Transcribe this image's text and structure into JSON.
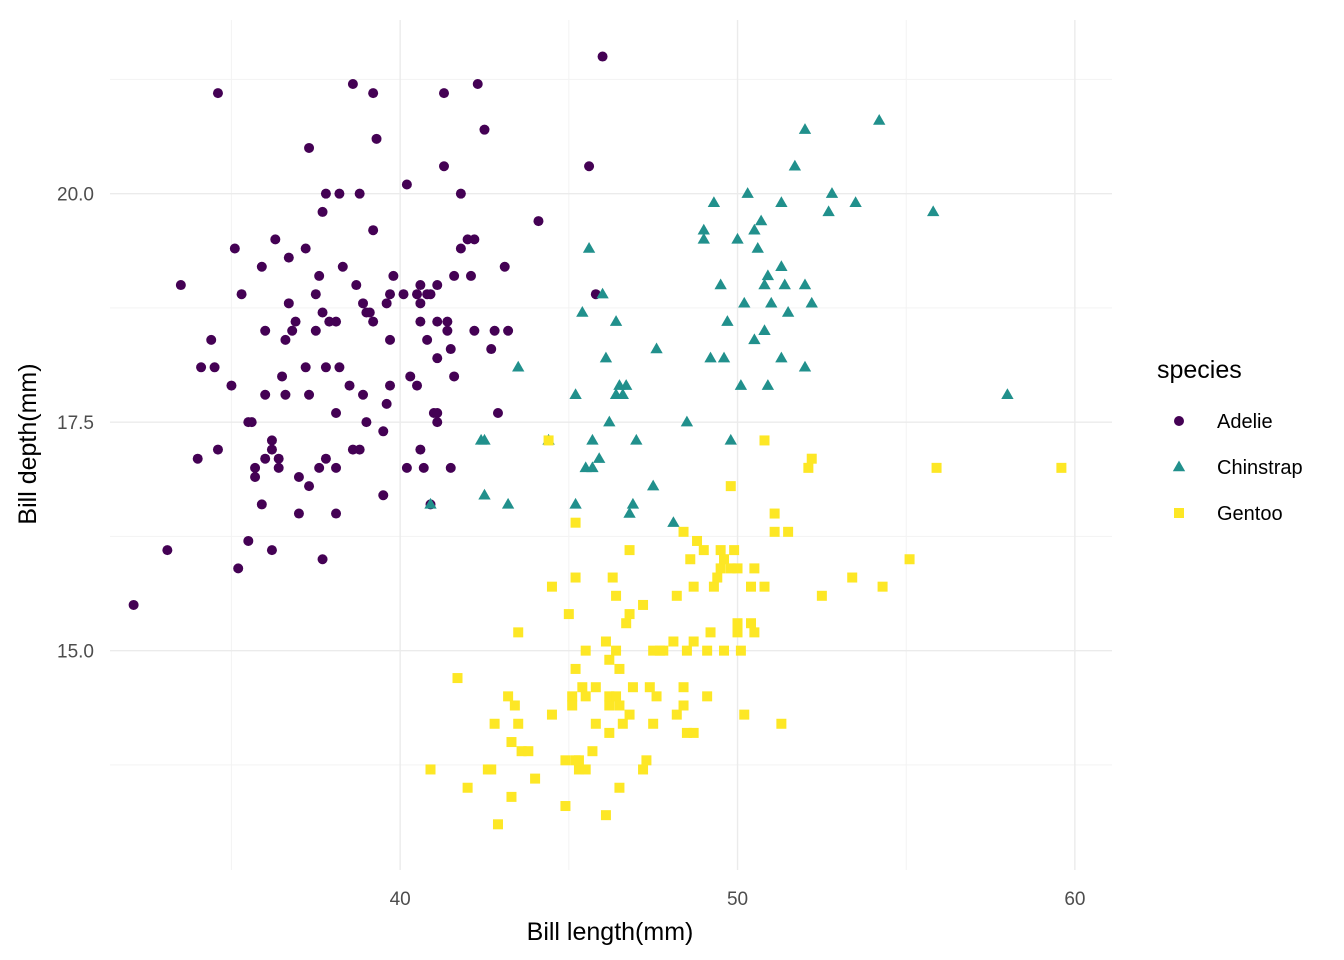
{
  "chart_data": {
    "type": "scatter",
    "xlabel": "Bill length(mm)",
    "ylabel": "Bill depth(mm)",
    "xlim": [
      31.4,
      61.1
    ],
    "ylim": [
      12.6,
      21.9
    ],
    "x_ticks": [
      40,
      50,
      60
    ],
    "x_tick_labels": [
      "40",
      "50",
      "60"
    ],
    "y_ticks": [
      15.0,
      17.5,
      20.0
    ],
    "y_tick_labels": [
      "15.0",
      "17.5",
      "20.0"
    ],
    "grid": true,
    "legend": {
      "title": "species",
      "position": "right"
    },
    "series": [
      {
        "name": "Adelie",
        "color": "#440154",
        "shape": "circle",
        "points": [
          [
            32.1,
            15.5
          ],
          [
            33.1,
            16.1
          ],
          [
            33.5,
            19.0
          ],
          [
            34.0,
            17.1
          ],
          [
            34.1,
            18.1
          ],
          [
            34.4,
            18.4
          ],
          [
            34.5,
            18.1
          ],
          [
            34.6,
            21.1
          ],
          [
            34.6,
            17.2
          ],
          [
            35.0,
            17.9
          ],
          [
            35.1,
            19.4
          ],
          [
            35.2,
            15.9
          ],
          [
            35.3,
            18.9
          ],
          [
            35.5,
            16.2
          ],
          [
            35.5,
            17.5
          ],
          [
            35.6,
            17.5
          ],
          [
            35.7,
            17.0
          ],
          [
            35.7,
            16.9
          ],
          [
            35.9,
            16.6
          ],
          [
            35.9,
            19.2
          ],
          [
            36.0,
            18.5
          ],
          [
            36.0,
            17.8
          ],
          [
            36.0,
            17.1
          ],
          [
            36.2,
            16.1
          ],
          [
            36.2,
            17.3
          ],
          [
            36.2,
            17.2
          ],
          [
            36.3,
            19.5
          ],
          [
            36.4,
            17.1
          ],
          [
            36.4,
            17.0
          ],
          [
            36.5,
            18.0
          ],
          [
            36.6,
            17.8
          ],
          [
            36.6,
            18.4
          ],
          [
            36.7,
            18.8
          ],
          [
            36.7,
            19.3
          ],
          [
            36.8,
            18.5
          ],
          [
            36.9,
            18.6
          ],
          [
            37.0,
            16.9
          ],
          [
            37.0,
            16.5
          ],
          [
            37.2,
            18.1
          ],
          [
            37.2,
            19.4
          ],
          [
            37.3,
            16.8
          ],
          [
            37.3,
            17.8
          ],
          [
            37.3,
            20.5
          ],
          [
            37.5,
            18.9
          ],
          [
            37.5,
            18.5
          ],
          [
            37.6,
            17.0
          ],
          [
            37.6,
            19.1
          ],
          [
            37.7,
            18.7
          ],
          [
            37.7,
            16.0
          ],
          [
            37.7,
            19.8
          ],
          [
            37.8,
            17.1
          ],
          [
            37.8,
            18.1
          ],
          [
            37.8,
            20.0
          ],
          [
            37.9,
            18.6
          ],
          [
            38.1,
            17.0
          ],
          [
            38.1,
            18.6
          ],
          [
            38.1,
            16.5
          ],
          [
            38.1,
            17.6
          ],
          [
            38.2,
            18.1
          ],
          [
            38.2,
            20.0
          ],
          [
            38.3,
            19.2
          ],
          [
            38.5,
            17.9
          ],
          [
            38.6,
            21.2
          ],
          [
            38.6,
            17.2
          ],
          [
            38.7,
            19.0
          ],
          [
            38.8,
            17.2
          ],
          [
            38.8,
            20.0
          ],
          [
            38.9,
            18.8
          ],
          [
            38.9,
            17.8
          ],
          [
            39.0,
            18.7
          ],
          [
            39.0,
            17.5
          ],
          [
            39.1,
            18.7
          ],
          [
            39.2,
            19.6
          ],
          [
            39.2,
            18.6
          ],
          [
            39.2,
            21.1
          ],
          [
            39.3,
            20.6
          ],
          [
            39.5,
            17.4
          ],
          [
            39.5,
            16.7
          ],
          [
            39.6,
            17.7
          ],
          [
            39.6,
            18.8
          ],
          [
            39.7,
            18.4
          ],
          [
            39.7,
            17.9
          ],
          [
            39.7,
            18.9
          ],
          [
            39.8,
            19.1
          ],
          [
            40.1,
            18.9
          ],
          [
            40.2,
            17.0
          ],
          [
            40.2,
            20.1
          ],
          [
            40.3,
            18.0
          ],
          [
            40.5,
            18.9
          ],
          [
            40.5,
            17.9
          ],
          [
            40.6,
            18.6
          ],
          [
            40.6,
            19.0
          ],
          [
            40.6,
            18.8
          ],
          [
            40.6,
            17.2
          ],
          [
            40.7,
            17.0
          ],
          [
            40.8,
            18.4
          ],
          [
            40.8,
            18.9
          ],
          [
            40.9,
            16.6
          ],
          [
            40.9,
            18.9
          ],
          [
            41.0,
            17.6
          ],
          [
            41.1,
            18.2
          ],
          [
            41.1,
            17.6
          ],
          [
            41.1,
            19.0
          ],
          [
            41.1,
            18.6
          ],
          [
            41.1,
            17.5
          ],
          [
            41.3,
            20.3
          ],
          [
            41.3,
            21.1
          ],
          [
            41.4,
            18.5
          ],
          [
            41.4,
            18.6
          ],
          [
            41.5,
            17.0
          ],
          [
            41.5,
            18.3
          ],
          [
            41.6,
            18.0
          ],
          [
            41.6,
            19.1
          ],
          [
            41.8,
            19.4
          ],
          [
            41.8,
            20.0
          ],
          [
            42.0,
            19.5
          ],
          [
            42.1,
            19.1
          ],
          [
            42.2,
            18.5
          ],
          [
            42.2,
            19.5
          ],
          [
            42.3,
            21.2
          ],
          [
            42.5,
            20.7
          ],
          [
            42.7,
            18.3
          ],
          [
            42.8,
            18.5
          ],
          [
            42.9,
            17.6
          ],
          [
            43.1,
            19.2
          ],
          [
            43.2,
            18.5
          ],
          [
            44.1,
            19.7
          ],
          [
            45.6,
            20.3
          ],
          [
            45.8,
            18.9
          ],
          [
            46.0,
            21.5
          ]
        ]
      },
      {
        "name": "Chinstrap",
        "color": "#21908c",
        "shape": "triangle",
        "points": [
          [
            40.9,
            16.6
          ],
          [
            42.4,
            17.3
          ],
          [
            42.5,
            16.7
          ],
          [
            42.5,
            17.3
          ],
          [
            43.2,
            16.6
          ],
          [
            43.5,
            18.1
          ],
          [
            44.4,
            17.3
          ],
          [
            45.2,
            16.6
          ],
          [
            45.2,
            17.8
          ],
          [
            45.4,
            18.7
          ],
          [
            45.5,
            17.0
          ],
          [
            45.6,
            19.4
          ],
          [
            45.7,
            17.0
          ],
          [
            45.7,
            17.3
          ],
          [
            45.9,
            17.1
          ],
          [
            46.0,
            18.9
          ],
          [
            46.1,
            18.2
          ],
          [
            46.2,
            17.5
          ],
          [
            46.4,
            17.8
          ],
          [
            46.4,
            18.6
          ],
          [
            46.5,
            17.9
          ],
          [
            46.6,
            17.8
          ],
          [
            46.7,
            17.9
          ],
          [
            46.8,
            16.5
          ],
          [
            46.9,
            16.6
          ],
          [
            47.0,
            17.3
          ],
          [
            47.5,
            16.8
          ],
          [
            47.6,
            18.3
          ],
          [
            48.1,
            16.4
          ],
          [
            48.5,
            17.5
          ],
          [
            49.0,
            19.5
          ],
          [
            49.0,
            19.6
          ],
          [
            49.2,
            18.2
          ],
          [
            49.3,
            19.9
          ],
          [
            49.5,
            19.0
          ],
          [
            49.6,
            18.2
          ],
          [
            49.7,
            18.6
          ],
          [
            49.8,
            17.3
          ],
          [
            50.0,
            19.5
          ],
          [
            50.1,
            17.9
          ],
          [
            50.2,
            18.8
          ],
          [
            50.3,
            20.0
          ],
          [
            50.5,
            18.4
          ],
          [
            50.5,
            19.6
          ],
          [
            50.6,
            19.4
          ],
          [
            50.7,
            19.7
          ],
          [
            50.8,
            18.5
          ],
          [
            50.8,
            19.0
          ],
          [
            50.9,
            17.9
          ],
          [
            50.9,
            19.1
          ],
          [
            51.0,
            18.8
          ],
          [
            51.3,
            18.2
          ],
          [
            51.3,
            19.2
          ],
          [
            51.3,
            19.9
          ],
          [
            51.4,
            19.0
          ],
          [
            51.5,
            18.7
          ],
          [
            51.7,
            20.3
          ],
          [
            52.0,
            18.1
          ],
          [
            52.0,
            19.0
          ],
          [
            52.0,
            20.7
          ],
          [
            52.2,
            18.8
          ],
          [
            52.7,
            19.8
          ],
          [
            52.8,
            20.0
          ],
          [
            53.5,
            19.9
          ],
          [
            54.2,
            20.8
          ],
          [
            55.8,
            19.8
          ],
          [
            58.0,
            17.8
          ]
        ]
      },
      {
        "name": "Gentoo",
        "color": "#fde725",
        "shape": "square",
        "points": [
          [
            40.9,
            13.7
          ],
          [
            41.7,
            14.7
          ],
          [
            42.0,
            13.5
          ],
          [
            42.6,
            13.7
          ],
          [
            42.7,
            13.7
          ],
          [
            42.8,
            14.2
          ],
          [
            42.9,
            13.1
          ],
          [
            43.2,
            14.5
          ],
          [
            43.3,
            13.4
          ],
          [
            43.3,
            14.0
          ],
          [
            43.4,
            14.4
          ],
          [
            43.5,
            14.2
          ],
          [
            43.5,
            15.2
          ],
          [
            43.6,
            13.9
          ],
          [
            43.8,
            13.9
          ],
          [
            44.0,
            13.6
          ],
          [
            44.4,
            17.3
          ],
          [
            44.5,
            14.3
          ],
          [
            44.5,
            15.7
          ],
          [
            44.9,
            13.3
          ],
          [
            44.9,
            13.8
          ],
          [
            45.0,
            15.4
          ],
          [
            45.1,
            14.5
          ],
          [
            45.1,
            14.4
          ],
          [
            45.2,
            13.8
          ],
          [
            45.2,
            14.8
          ],
          [
            45.2,
            15.8
          ],
          [
            45.2,
            16.4
          ],
          [
            45.3,
            13.7
          ],
          [
            45.3,
            13.8
          ],
          [
            45.4,
            14.6
          ],
          [
            45.5,
            13.7
          ],
          [
            45.5,
            14.5
          ],
          [
            45.5,
            15.0
          ],
          [
            45.7,
            13.9
          ],
          [
            45.8,
            14.2
          ],
          [
            45.8,
            14.6
          ],
          [
            46.1,
            13.2
          ],
          [
            46.1,
            15.1
          ],
          [
            46.2,
            14.1
          ],
          [
            46.2,
            14.4
          ],
          [
            46.2,
            14.5
          ],
          [
            46.2,
            14.9
          ],
          [
            46.3,
            15.8
          ],
          [
            46.4,
            14.5
          ],
          [
            46.4,
            15.0
          ],
          [
            46.4,
            15.6
          ],
          [
            46.5,
            13.5
          ],
          [
            46.5,
            14.4
          ],
          [
            46.5,
            14.8
          ],
          [
            46.6,
            14.2
          ],
          [
            46.7,
            15.3
          ],
          [
            46.8,
            14.3
          ],
          [
            46.8,
            15.4
          ],
          [
            46.8,
            16.1
          ],
          [
            46.9,
            14.6
          ],
          [
            47.2,
            13.7
          ],
          [
            47.2,
            15.5
          ],
          [
            47.3,
            13.8
          ],
          [
            47.4,
            14.6
          ],
          [
            47.5,
            14.2
          ],
          [
            47.5,
            15.0
          ],
          [
            47.6,
            14.5
          ],
          [
            47.7,
            15.0
          ],
          [
            47.8,
            15.0
          ],
          [
            48.1,
            15.1
          ],
          [
            48.2,
            14.3
          ],
          [
            48.2,
            15.6
          ],
          [
            48.4,
            14.4
          ],
          [
            48.4,
            14.6
          ],
          [
            48.4,
            16.3
          ],
          [
            48.5,
            14.1
          ],
          [
            48.5,
            15.0
          ],
          [
            48.6,
            16.0
          ],
          [
            48.7,
            14.1
          ],
          [
            48.7,
            15.1
          ],
          [
            48.7,
            15.7
          ],
          [
            48.8,
            16.2
          ],
          [
            49.0,
            16.1
          ],
          [
            49.1,
            14.5
          ],
          [
            49.1,
            15.0
          ],
          [
            49.2,
            15.2
          ],
          [
            49.3,
            15.7
          ],
          [
            49.4,
            15.8
          ],
          [
            49.5,
            15.9
          ],
          [
            49.5,
            16.1
          ],
          [
            49.6,
            15.0
          ],
          [
            49.6,
            16.0
          ],
          [
            49.8,
            15.9
          ],
          [
            49.8,
            16.8
          ],
          [
            49.9,
            16.1
          ],
          [
            50.0,
            15.2
          ],
          [
            50.0,
            15.3
          ],
          [
            50.0,
            15.9
          ],
          [
            50.1,
            15.0
          ],
          [
            50.2,
            14.3
          ],
          [
            50.4,
            15.3
          ],
          [
            50.4,
            15.7
          ],
          [
            50.5,
            15.2
          ],
          [
            50.5,
            15.9
          ],
          [
            50.8,
            15.7
          ],
          [
            50.8,
            17.3
          ],
          [
            51.1,
            16.3
          ],
          [
            51.1,
            16.5
          ],
          [
            51.3,
            14.2
          ],
          [
            51.5,
            16.3
          ],
          [
            52.1,
            17.0
          ],
          [
            52.2,
            17.1
          ],
          [
            52.5,
            15.6
          ],
          [
            53.4,
            15.8
          ],
          [
            54.3,
            15.7
          ],
          [
            55.1,
            16.0
          ],
          [
            55.9,
            17.0
          ],
          [
            59.6,
            17.0
          ]
        ]
      }
    ]
  }
}
